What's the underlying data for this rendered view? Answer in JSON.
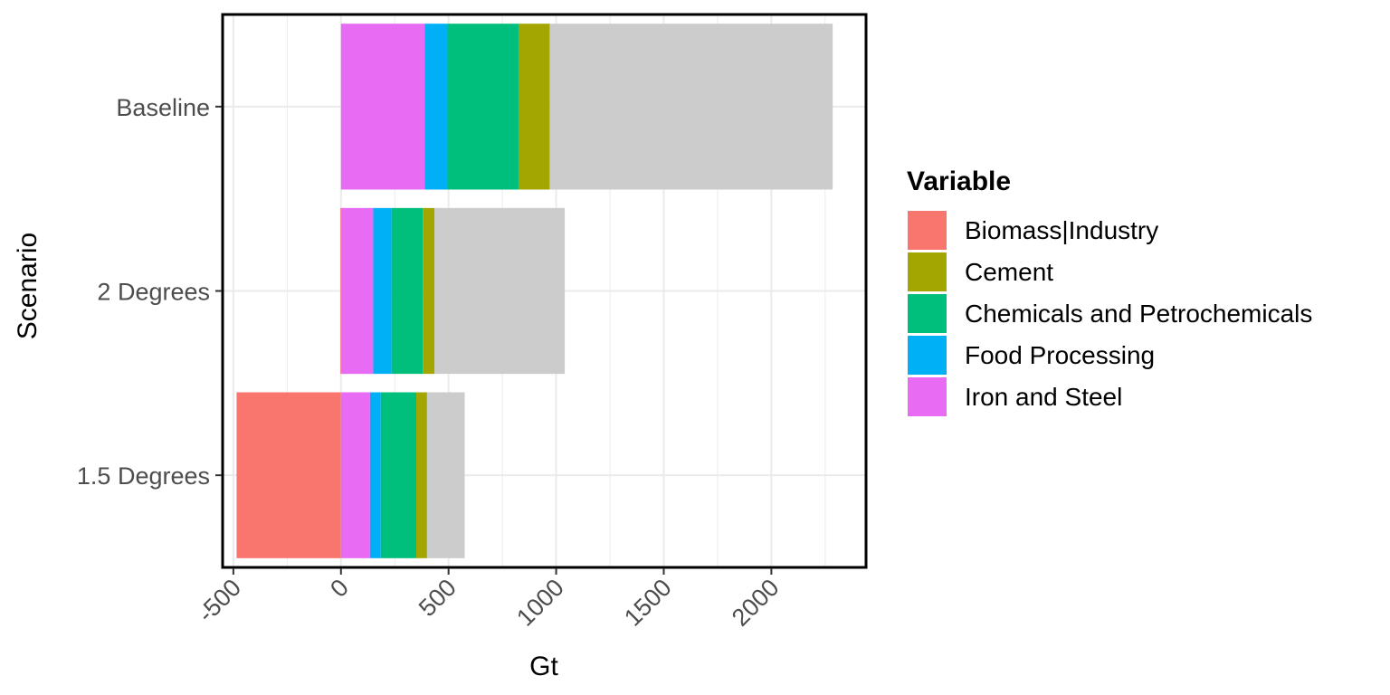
{
  "chart_data": {
    "type": "bar",
    "orientation": "horizontal",
    "stacked": true,
    "categories": [
      "Baseline",
      "2 Degrees",
      "1.5 Degrees"
    ],
    "xlabel": "Gt",
    "ylabel": "Scenario",
    "xlim": [
      -550,
      2440
    ],
    "x_ticks": [
      "-500",
      "0",
      "500",
      "1000",
      "1500",
      "2000"
    ],
    "x_tick_values": [
      -500,
      0,
      500,
      1000,
      1500,
      2000
    ],
    "grid": true,
    "legend_title": "Variable",
    "legend_position": "right",
    "legend": [
      {
        "name": "Biomass|Industry",
        "color": "#F8766D"
      },
      {
        "name": "Cement",
        "color": "#A3A500"
      },
      {
        "name": "Chemicals and Petrochemicals",
        "color": "#00BF7D"
      },
      {
        "name": "Food Processing",
        "color": "#00B0F6"
      },
      {
        "name": "Iron and Steel",
        "color": "#E76BF3"
      }
    ],
    "other_segment_color": "#CCCCCC",
    "bars": [
      {
        "category": "Baseline",
        "segments": [
          {
            "series": "Biomass|Industry",
            "value": 0,
            "color": "#F8766D"
          },
          {
            "series": "Iron and Steel",
            "value": 390,
            "color": "#E76BF3"
          },
          {
            "series": "Food Processing",
            "value": 105,
            "color": "#00B0F6"
          },
          {
            "series": "Chemicals and Petrochemicals",
            "value": 330,
            "color": "#00BF7D"
          },
          {
            "series": "Cement",
            "value": 145,
            "color": "#A3A500"
          },
          {
            "series": "",
            "value": 1315,
            "color": "#CCCCCC"
          }
        ]
      },
      {
        "category": "2 Degrees",
        "segments": [
          {
            "series": "Biomass|Industry",
            "value": -3,
            "color": "#F8766D"
          },
          {
            "series": "Iron and Steel",
            "value": 150,
            "color": "#E76BF3"
          },
          {
            "series": "Food Processing",
            "value": 85,
            "color": "#00B0F6"
          },
          {
            "series": "Chemicals and Petrochemicals",
            "value": 145,
            "color": "#00BF7D"
          },
          {
            "series": "Cement",
            "value": 55,
            "color": "#A3A500"
          },
          {
            "series": "",
            "value": 605,
            "color": "#CCCCCC"
          }
        ]
      },
      {
        "category": "1.5 Degrees",
        "segments": [
          {
            "series": "Biomass|Industry",
            "value": -485,
            "color": "#F8766D"
          },
          {
            "series": "Iron and Steel",
            "value": 135,
            "color": "#E76BF3"
          },
          {
            "series": "Food Processing",
            "value": 50,
            "color": "#00B0F6"
          },
          {
            "series": "Chemicals and Petrochemicals",
            "value": 165,
            "color": "#00BF7D"
          },
          {
            "series": "Cement",
            "value": 50,
            "color": "#A3A500"
          },
          {
            "series": "",
            "value": 175,
            "color": "#CCCCCC"
          }
        ]
      }
    ]
  }
}
